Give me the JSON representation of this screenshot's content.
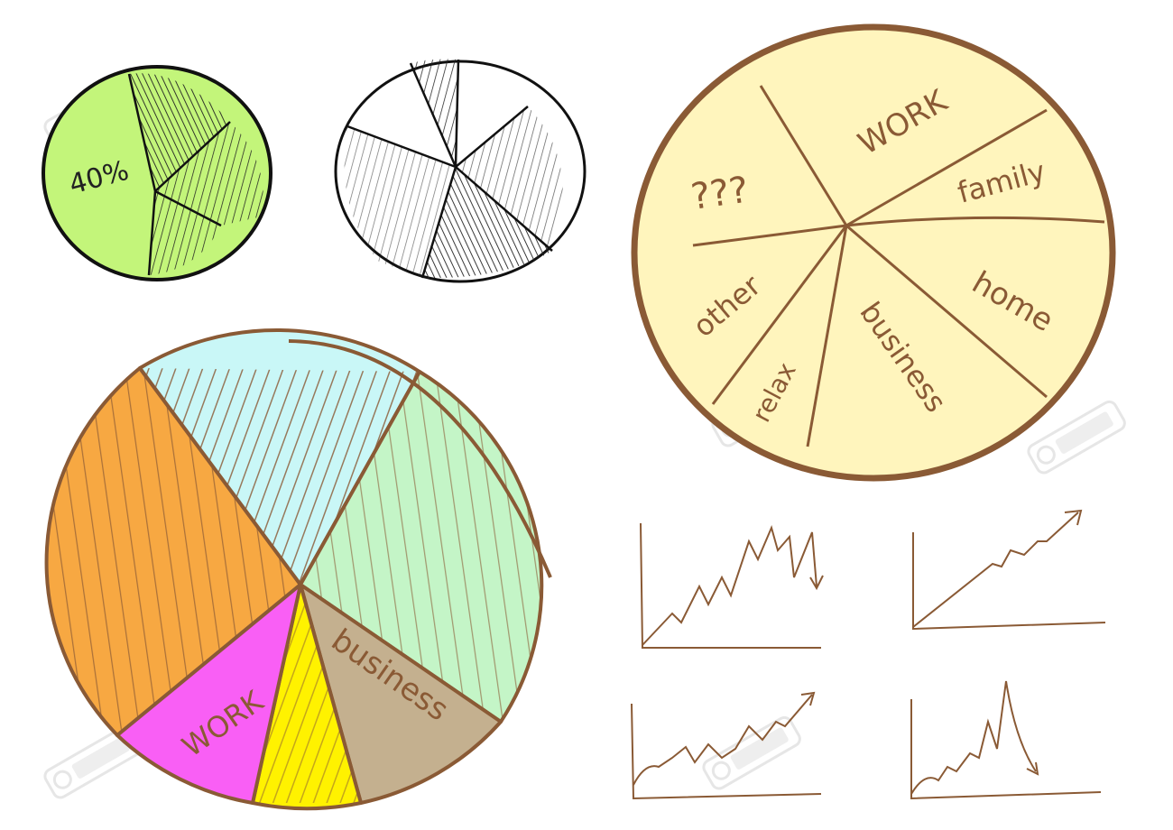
{
  "colors": {
    "outline_brown": "#8a5a35",
    "green_pie": "#c3f57a",
    "yellow_pie": "#fff5bd",
    "orange": "#f7a842",
    "cyan": "#c9f7f7",
    "mint": "#c4f5c7",
    "tan": "#c4b08f",
    "yellow": "#fff200",
    "magenta": "#f95ff5"
  },
  "green_pie": {
    "label": "40%"
  },
  "yellow_pie": {
    "labels": {
      "work": "WORK",
      "family": "family",
      "unknown": "???",
      "other": "other",
      "home": "home",
      "business": "business",
      "relax": "relax"
    }
  },
  "big_pie": {
    "labels": {
      "work": "WORK",
      "business": "business"
    }
  },
  "watermark": "123RF"
}
